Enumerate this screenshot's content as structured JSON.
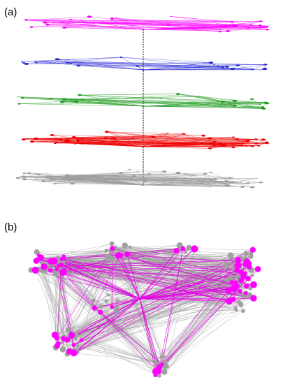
{
  "panels": [
    {
      "label": "(a)"
    },
    {
      "label": "(b)"
    }
  ],
  "layers": [
    {
      "color": "#ff00ff"
    },
    {
      "color": "#2b2bd6"
    },
    {
      "color": "#1f9a1f"
    },
    {
      "color": "#ee0000"
    },
    {
      "color": "#9e9e9e"
    }
  ],
  "aggregate_colors": {
    "edges_gray": "#9e9e9e",
    "edges_highlight": "#e600e6",
    "nodes_gray": "#a0a0a0",
    "nodes_highlight": "#ff00ff"
  }
}
